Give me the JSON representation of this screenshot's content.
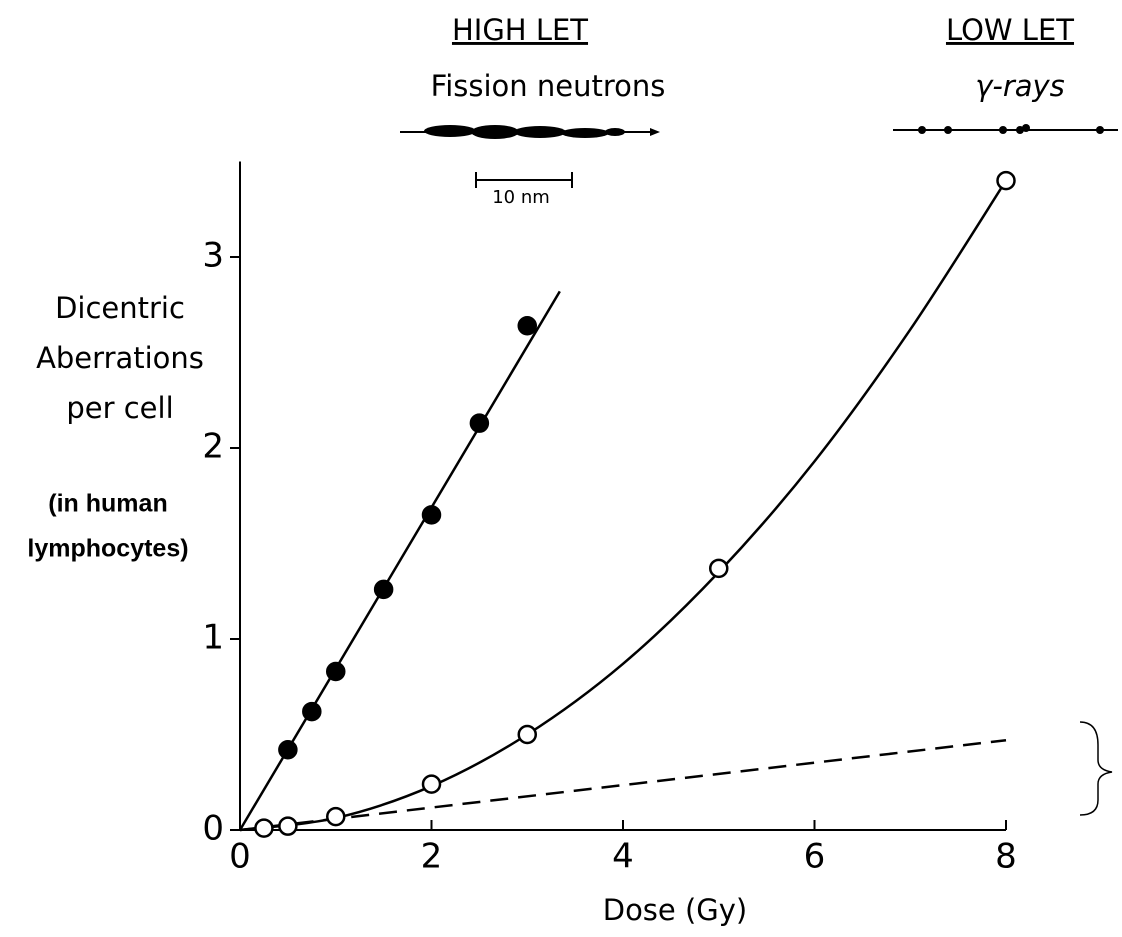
{
  "chart_data": {
    "type": "scatter",
    "header_left": {
      "title": "HIGH LET",
      "subtitle": "Fission neutrons",
      "scale": "10 nm"
    },
    "header_right": {
      "title": "LOW LET",
      "subtitle": "γ-rays"
    },
    "ylabel": [
      "Dicentric",
      "Aberrations",
      "per cell"
    ],
    "ylabel_note": [
      "(in human",
      "lymphocytes)"
    ],
    "xlabel": "Dose (Gy)",
    "xlim": [
      0,
      8
    ],
    "ylim": [
      0,
      3.5
    ],
    "xticks": [
      0,
      2,
      4,
      6,
      8
    ],
    "yticks": [
      0,
      1,
      2,
      3
    ],
    "series": [
      {
        "kind": "points",
        "marker": "filled",
        "color": "#000",
        "x": [
          0.5,
          0.75,
          1,
          1.5,
          2,
          2.5,
          3
        ],
        "values": [
          0.42,
          0.62,
          0.83,
          1.26,
          1.65,
          2.13,
          2.64
        ]
      },
      {
        "kind": "points",
        "marker": "open",
        "color": "#000",
        "x": [
          0.25,
          0.5,
          1,
          2,
          3,
          5,
          8
        ],
        "values": [
          0.01,
          0.02,
          0.07,
          0.24,
          0.5,
          1.37,
          3.4
        ]
      },
      {
        "kind": "line",
        "style": "solid",
        "color": "#000",
        "x": [
          0,
          3.34
        ],
        "values": [
          0,
          2.82
        ]
      },
      {
        "kind": "line",
        "style": "solid",
        "color": "#000",
        "x": [
          0,
          1,
          2,
          3,
          4,
          5,
          6,
          7,
          8
        ],
        "values": [
          0,
          0.063,
          0.23,
          0.5,
          0.87,
          1.35,
          1.93,
          2.62,
          3.4
        ]
      },
      {
        "kind": "line",
        "style": "dashed",
        "color": "#000",
        "x": [
          0,
          8
        ],
        "values": [
          0,
          0.47
        ]
      }
    ]
  }
}
